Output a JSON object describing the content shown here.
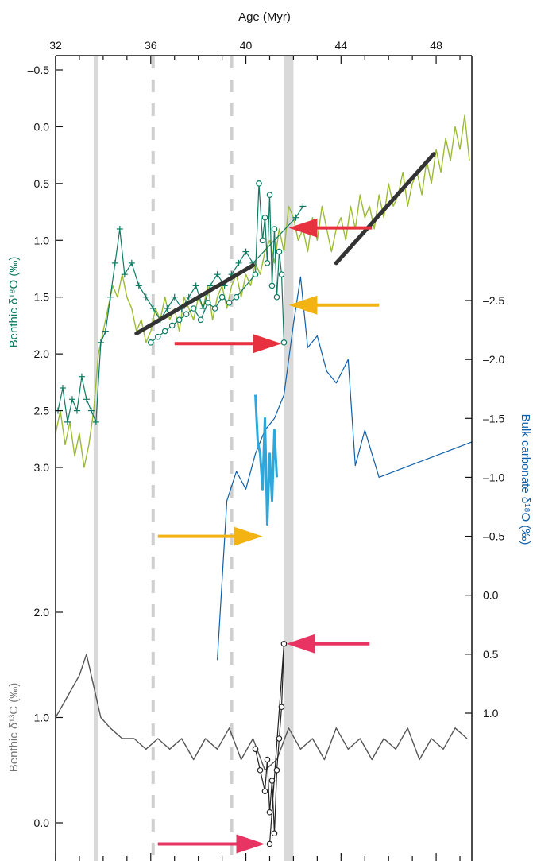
{
  "chart_data": {
    "type": "line",
    "colors": {
      "benthic_d18O": "#0f7a62",
      "green_raw": "#9bbb34",
      "bulk": "#0f5fa8",
      "bulk_light": "#2ea7db",
      "benthic_d13C": "#555555",
      "shading": "#d9d9d9",
      "trend": "#333333",
      "arrow_red": "#e8313f",
      "arrow_yellow": "#f2b313",
      "arrow_pink": "#e83462"
    },
    "x_axis": {
      "label": "Age (Myr)",
      "ticks": [
        "32",
        "36",
        "40",
        "44",
        "48"
      ],
      "tick_values": [
        32,
        36,
        40,
        44,
        48
      ],
      "range": [
        32,
        49.5
      ]
    },
    "left_top_axis": {
      "label": "Benthic δ¹⁸O (‰)",
      "ticks": [
        "–0.5",
        "0.0",
        "0.5",
        "1.0",
        "1.5",
        "2.0",
        "2.5",
        "3.0"
      ],
      "tick_values": [
        -0.5,
        0.0,
        0.5,
        1.0,
        1.5,
        2.0,
        2.5,
        3.0
      ],
      "range": [
        -0.7,
        3.1
      ],
      "reversed": true
    },
    "right_axis": {
      "label": "Bulk carbonate δ¹⁸O (‰)",
      "ticks": [
        "–2.5",
        "–2.0",
        "–1.5",
        "–1.0",
        "–0.5",
        "0.0",
        "0.5",
        "1.0"
      ],
      "tick_values": [
        -2.5,
        -2.0,
        -1.5,
        -1.0,
        -0.5,
        0.0,
        0.5,
        1.0
      ],
      "range": [
        -3.0,
        1.3
      ],
      "reversed": true
    },
    "left_bottom_axis": {
      "label": "Benthic δ¹³C (‰)",
      "ticks": [
        "2.0",
        "1.0",
        "0.0"
      ],
      "tick_values": [
        2.0,
        1.0,
        0.0
      ],
      "range": [
        -0.25,
        2.0
      ]
    },
    "shaded_bands": [
      [
        33.6,
        33.8
      ],
      [
        41.6,
        42.0
      ]
    ],
    "dashed_lines": [
      36.1,
      39.4
    ],
    "trend_lines": [
      {
        "x": [
          35.4,
          40.3
        ],
        "y": [
          1.82,
          1.22
        ]
      },
      {
        "x": [
          43.8,
          47.9
        ],
        "y": [
          1.2,
          0.24
        ]
      }
    ],
    "series": [
      {
        "axis": "d18O",
        "style": "raw",
        "x": [
          32.0,
          32.2,
          32.4,
          32.6,
          32.8,
          33.0,
          33.2,
          33.4,
          33.6,
          33.8,
          34.0,
          34.2,
          34.4,
          34.6,
          34.8,
          35.0,
          35.2,
          35.4,
          35.6,
          35.8,
          36.0,
          36.2,
          36.4,
          36.6,
          36.8,
          37.0,
          37.2,
          37.4,
          37.6,
          37.8,
          38.0,
          38.2,
          38.4,
          38.6,
          38.8,
          39.0,
          39.2,
          39.4,
          39.6,
          39.8,
          40.0,
          40.2,
          40.4,
          40.6,
          40.8,
          41.0,
          41.2,
          41.4,
          41.6,
          41.8,
          42.0,
          42.2,
          42.4,
          42.6,
          42.8,
          43.0,
          43.2,
          43.4,
          43.6,
          43.8,
          44.0,
          44.2,
          44.4,
          44.6,
          44.8,
          45.0,
          45.2,
          45.4,
          45.6,
          45.8,
          46.0,
          46.2,
          46.4,
          46.6,
          46.8,
          47.0,
          47.2,
          47.4,
          47.6,
          47.8,
          48.0,
          48.2,
          48.4,
          48.6,
          48.8,
          49.0,
          49.2,
          49.4
        ],
        "y": [
          2.7,
          2.5,
          2.8,
          2.6,
          2.9,
          2.7,
          3.0,
          2.8,
          2.5,
          2.0,
          1.8,
          1.6,
          1.4,
          1.5,
          1.3,
          1.5,
          1.6,
          1.8,
          1.7,
          1.9,
          1.8,
          1.6,
          1.7,
          1.5,
          1.7,
          1.6,
          1.8,
          1.5,
          1.6,
          1.7,
          1.5,
          1.6,
          1.4,
          1.7,
          1.5,
          1.4,
          1.6,
          1.4,
          1.3,
          1.5,
          1.3,
          1.4,
          1.2,
          1.3,
          1.1,
          1.0,
          1.2,
          0.9,
          1.1,
          0.7,
          0.8,
          1.0,
          0.9,
          1.1,
          0.8,
          1.0,
          0.7,
          0.9,
          1.1,
          0.9,
          0.8,
          1.0,
          0.7,
          0.9,
          0.6,
          0.8,
          0.7,
          0.9,
          0.6,
          0.8,
          0.5,
          0.7,
          0.6,
          0.4,
          0.7,
          0.5,
          0.4,
          0.6,
          0.3,
          0.5,
          0.2,
          0.4,
          0.1,
          0.3,
          0.0,
          0.2,
          -0.1,
          0.3
        ]
      },
      {
        "axis": "d18O",
        "style": "plus",
        "x": [
          32.1,
          32.3,
          32.5,
          32.7,
          32.9,
          33.1,
          33.3,
          33.5,
          33.7,
          33.9,
          34.1,
          34.3,
          34.5,
          34.7,
          34.9,
          35.2,
          35.5,
          35.8,
          36.1,
          36.4,
          36.7,
          37.0,
          37.3,
          37.6,
          37.9,
          38.2,
          38.5,
          38.8,
          39.1,
          39.4,
          39.7,
          40.0,
          40.3,
          42.1,
          42.4
        ],
        "y": [
          2.5,
          2.3,
          2.6,
          2.4,
          2.5,
          2.2,
          2.4,
          2.5,
          2.6,
          1.9,
          1.8,
          1.5,
          1.2,
          0.9,
          1.3,
          1.2,
          1.4,
          1.5,
          1.6,
          1.7,
          1.6,
          1.5,
          1.6,
          1.5,
          1.4,
          1.6,
          1.4,
          1.3,
          1.4,
          1.3,
          1.2,
          1.1,
          1.2,
          0.8,
          0.7
        ]
      },
      {
        "axis": "d18O",
        "style": "circle",
        "x": [
          36.0,
          36.3,
          36.6,
          36.9,
          37.2,
          37.5,
          37.8,
          38.1,
          38.4,
          38.7,
          39.0,
          39.3,
          39.6,
          40.4,
          40.55,
          40.7,
          40.8,
          40.9,
          41.0,
          41.1,
          41.2,
          41.3,
          41.4,
          41.5,
          41.6
        ],
        "y": [
          1.9,
          1.85,
          1.8,
          1.75,
          1.7,
          1.65,
          1.6,
          1.7,
          1.55,
          1.6,
          1.5,
          1.55,
          1.5,
          1.3,
          0.5,
          1.0,
          0.8,
          1.2,
          0.6,
          1.4,
          0.9,
          1.5,
          1.1,
          1.3,
          1.9
        ]
      },
      {
        "axis": "bulk",
        "style": "line",
        "x": [
          38.8,
          39.2,
          39.6,
          40.0,
          40.4,
          40.8,
          41.2,
          41.6,
          42.0,
          42.3,
          42.6,
          43.0,
          43.4,
          43.8,
          44.3,
          44.6,
          45.0,
          45.6,
          49.5
        ],
        "y": [
          0.55,
          -0.8,
          -1.05,
          -0.9,
          -1.2,
          -1.4,
          -1.5,
          -1.7,
          -2.3,
          -2.7,
          -2.1,
          -2.2,
          -1.9,
          -1.8,
          -2.0,
          -1.1,
          -1.4,
          -1.0,
          -1.3
        ]
      },
      {
        "axis": "bulk",
        "style": "line-light",
        "x": [
          40.4,
          40.5,
          40.6,
          40.7,
          40.8,
          40.9,
          41.0,
          41.1,
          41.2,
          41.3
        ],
        "y": [
          -1.7,
          -1.3,
          -1.2,
          -0.9,
          -1.5,
          -0.6,
          -1.2,
          -0.8,
          -1.4,
          -1.0
        ]
      },
      {
        "axis": "d13C",
        "style": "raw",
        "x": [
          32.0,
          32.5,
          33.0,
          33.3,
          33.6,
          33.9,
          34.3,
          34.8,
          35.3,
          35.8,
          36.3,
          36.8,
          37.3,
          37.8,
          38.3,
          38.8,
          39.3,
          39.8,
          40.3,
          40.8,
          41.3,
          41.8,
          42.3,
          42.8,
          43.3,
          43.8,
          44.3,
          44.8,
          45.3,
          45.8,
          46.3,
          46.8,
          47.3,
          47.8,
          48.3,
          48.8,
          49.3
        ],
        "y": [
          1.0,
          1.2,
          1.4,
          1.6,
          1.3,
          1.0,
          0.9,
          0.8,
          0.8,
          0.7,
          0.8,
          0.7,
          0.8,
          0.6,
          0.8,
          0.7,
          0.9,
          0.6,
          0.8,
          0.5,
          0.6,
          0.9,
          0.7,
          0.8,
          0.6,
          0.9,
          0.7,
          0.8,
          0.6,
          0.8,
          0.7,
          0.9,
          0.6,
          0.8,
          0.7,
          0.9,
          0.8
        ]
      },
      {
        "axis": "d13C",
        "style": "circle",
        "x": [
          40.4,
          40.6,
          40.8,
          40.9,
          41.0,
          41.1,
          41.2,
          41.3,
          41.4,
          41.5,
          41.6,
          41.0
        ],
        "y": [
          0.7,
          0.5,
          0.3,
          0.6,
          0.1,
          0.4,
          -0.1,
          0.5,
          0.8,
          1.1,
          1.7,
          -0.2
        ]
      }
    ],
    "arrows": [
      {
        "color": "red",
        "direction": "left",
        "x_from": 45.3,
        "x_to": 41.8,
        "axis": "d18O",
        "y": 0.89
      },
      {
        "color": "yellow",
        "direction": "left",
        "x_from": 45.6,
        "x_to": 41.8,
        "axis": "d18O",
        "y": 1.57
      },
      {
        "color": "red",
        "direction": "right",
        "x_from": 37.0,
        "x_to": 41.5,
        "axis": "d18O",
        "y": 1.91
      },
      {
        "color": "yellow",
        "direction": "right",
        "x_from": 36.3,
        "x_to": 40.7,
        "axis": "bulk",
        "y": -0.5
      },
      {
        "color": "pink",
        "direction": "left",
        "x_from": 45.2,
        "x_to": 41.7,
        "axis": "d13C",
        "y": 1.7
      },
      {
        "color": "pink",
        "direction": "right",
        "x_from": 36.3,
        "x_to": 40.8,
        "axis": "d13C",
        "y": -0.2
      }
    ]
  }
}
